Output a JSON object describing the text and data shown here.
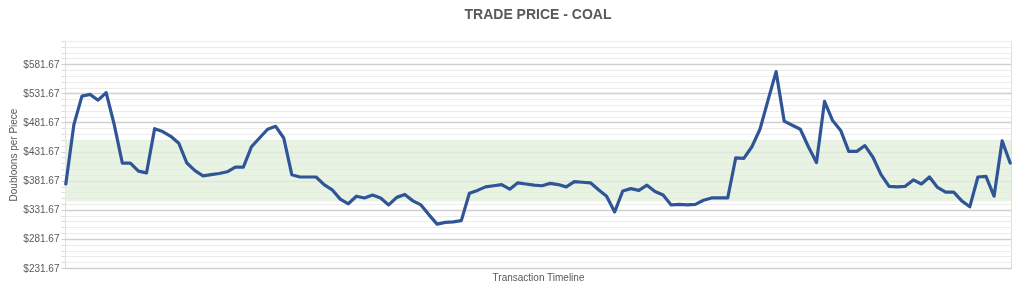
{
  "chart_data": {
    "type": "line",
    "title": "TRADE PRICE - COAL",
    "xlabel": "Transaction Timeline",
    "ylabel": "Doubloons per Piece",
    "categories": [
      null,
      null,
      null,
      null,
      null,
      null,
      null,
      null,
      null,
      null,
      null,
      null,
      null,
      null,
      null,
      null,
      null,
      null,
      null,
      null,
      null,
      null,
      null,
      null,
      null,
      null,
      null,
      null,
      null,
      null,
      null,
      null,
      null,
      null,
      null,
      null,
      null,
      null,
      null,
      null,
      null,
      null,
      null,
      null,
      null,
      null,
      null,
      null,
      null,
      null,
      null,
      null,
      null,
      null,
      null,
      null,
      null,
      null,
      null,
      null,
      null,
      null,
      null,
      null,
      null,
      null,
      null,
      null,
      null,
      null,
      null,
      null,
      null,
      null,
      null,
      null,
      null,
      null,
      null,
      null,
      null,
      null,
      null,
      null,
      null,
      null,
      null,
      null,
      null,
      null,
      null,
      null,
      null,
      null,
      null,
      null,
      null,
      null,
      null,
      null,
      null,
      null,
      null,
      null,
      null,
      null,
      null,
      null,
      null,
      null,
      null,
      null,
      null,
      null,
      null,
      null,
      null,
      null
    ],
    "series": [
      {
        "color": "#2f5597",
        "values": [
          376,
          478,
          527,
          530,
          520,
          533,
          478,
          412,
          412,
          398,
          395,
          471,
          466,
          458,
          446,
          412,
          399,
          390,
          392,
          394,
          397,
          405,
          405,
          440,
          455,
          470,
          475,
          455,
          392,
          388,
          388,
          388,
          375,
          366,
          350,
          342,
          355,
          352,
          357,
          352,
          340,
          353,
          358,
          347,
          340,
          323,
          307,
          310,
          311,
          313,
          360,
          365,
          371,
          373,
          375,
          367,
          378,
          376,
          374,
          373,
          377,
          375,
          371,
          380,
          379,
          378,
          366,
          355,
          328,
          364,
          368,
          365,
          374,
          363,
          357,
          340,
          341,
          340,
          341,
          348,
          352,
          352,
          352,
          421,
          420,
          440,
          470,
          520,
          569,
          484,
          477,
          470,
          440,
          413,
          518,
          485,
          468,
          432,
          432,
          442,
          422,
          392,
          372,
          371,
          372,
          383,
          376,
          388,
          370,
          362,
          362,
          347,
          337,
          388,
          389,
          355,
          450,
          412
        ]
      }
    ],
    "ylim": [
      231.67,
      621.67
    ],
    "yticks": [
      {
        "value": 231.67,
        "label": "$231.67"
      },
      {
        "value": 241.67,
        "label": null
      },
      {
        "value": 251.67,
        "label": null
      },
      {
        "value": 261.67,
        "label": null
      },
      {
        "value": 271.67,
        "label": null
      },
      {
        "value": 281.67,
        "label": "$281.67"
      },
      {
        "value": 291.67,
        "label": null
      },
      {
        "value": 301.67,
        "label": null
      },
      {
        "value": 311.67,
        "label": null
      },
      {
        "value": 321.67,
        "label": null
      },
      {
        "value": 331.67,
        "label": "$331.67"
      },
      {
        "value": 341.67,
        "label": null
      },
      {
        "value": 351.67,
        "label": null
      },
      {
        "value": 361.67,
        "label": null
      },
      {
        "value": 371.67,
        "label": null
      },
      {
        "value": 381.67,
        "label": "$381.67"
      },
      {
        "value": 391.67,
        "label": null
      },
      {
        "value": 401.67,
        "label": null
      },
      {
        "value": 411.67,
        "label": null
      },
      {
        "value": 421.67,
        "label": null
      },
      {
        "value": 431.67,
        "label": "$431.67"
      },
      {
        "value": 441.67,
        "label": null
      },
      {
        "value": 451.67,
        "label": null
      },
      {
        "value": 461.67,
        "label": null
      },
      {
        "value": 471.67,
        "label": null
      },
      {
        "value": 481.67,
        "label": "$481.67"
      },
      {
        "value": 491.67,
        "label": null
      },
      {
        "value": 501.67,
        "label": null
      },
      {
        "value": 511.67,
        "label": null
      },
      {
        "value": 521.67,
        "label": null
      },
      {
        "value": 531.67,
        "label": "$531.67"
      },
      {
        "value": 541.67,
        "label": null
      },
      {
        "value": 551.67,
        "label": null
      },
      {
        "value": 561.67,
        "label": null
      },
      {
        "value": 571.67,
        "label": null
      },
      {
        "value": 581.67,
        "label": "$581.67"
      },
      {
        "value": 591.67,
        "label": null
      },
      {
        "value": 601.67,
        "label": null
      },
      {
        "value": 611.67,
        "label": null
      },
      {
        "value": 621.67,
        "label": null
      }
    ],
    "bands": [
      {
        "axis": "y",
        "from": 346,
        "to": 451,
        "color": "#e2efda"
      }
    ],
    "grid": "y",
    "tick_labels": "y"
  }
}
